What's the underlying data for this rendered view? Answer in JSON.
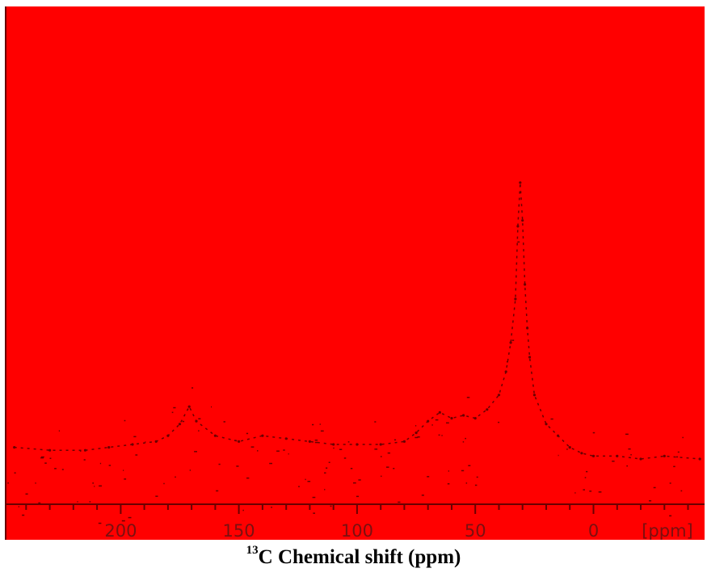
{
  "chart_data": {
    "type": "line",
    "title": "",
    "xlabel_sup": "13",
    "xlabel_rest": "C Chemical shift (ppm)",
    "ylabel": "",
    "axis_unit_label": "[ppm]",
    "xlim": [
      249,
      -47
    ],
    "xticks": [
      200,
      150,
      100,
      50,
      0
    ],
    "x_reversed": true,
    "grid": false,
    "background_color": "#ff0000",
    "mark_color": "#6a0000",
    "series": [
      {
        "x": [
          245,
          230,
          215,
          205,
          195,
          185,
          180,
          175,
          171,
          168,
          160,
          150,
          140,
          130,
          120,
          110,
          100,
          90,
          80,
          75,
          70,
          65,
          60,
          55,
          50,
          45,
          40,
          37,
          35,
          33,
          32,
          31,
          30,
          29,
          28,
          27,
          25,
          20,
          15,
          10,
          5,
          0,
          -10,
          -20,
          -30,
          -45
        ],
        "y": [
          0.04,
          0.03,
          0.03,
          0.04,
          0.05,
          0.06,
          0.08,
          0.12,
          0.18,
          0.13,
          0.08,
          0.06,
          0.08,
          0.07,
          0.06,
          0.05,
          0.05,
          0.05,
          0.06,
          0.09,
          0.13,
          0.16,
          0.14,
          0.15,
          0.14,
          0.17,
          0.22,
          0.3,
          0.4,
          0.55,
          0.8,
          0.95,
          0.82,
          0.6,
          0.45,
          0.35,
          0.22,
          0.12,
          0.08,
          0.04,
          0.02,
          0.01,
          0.01,
          0.0,
          0.01,
          0.0
        ]
      }
    ]
  }
}
